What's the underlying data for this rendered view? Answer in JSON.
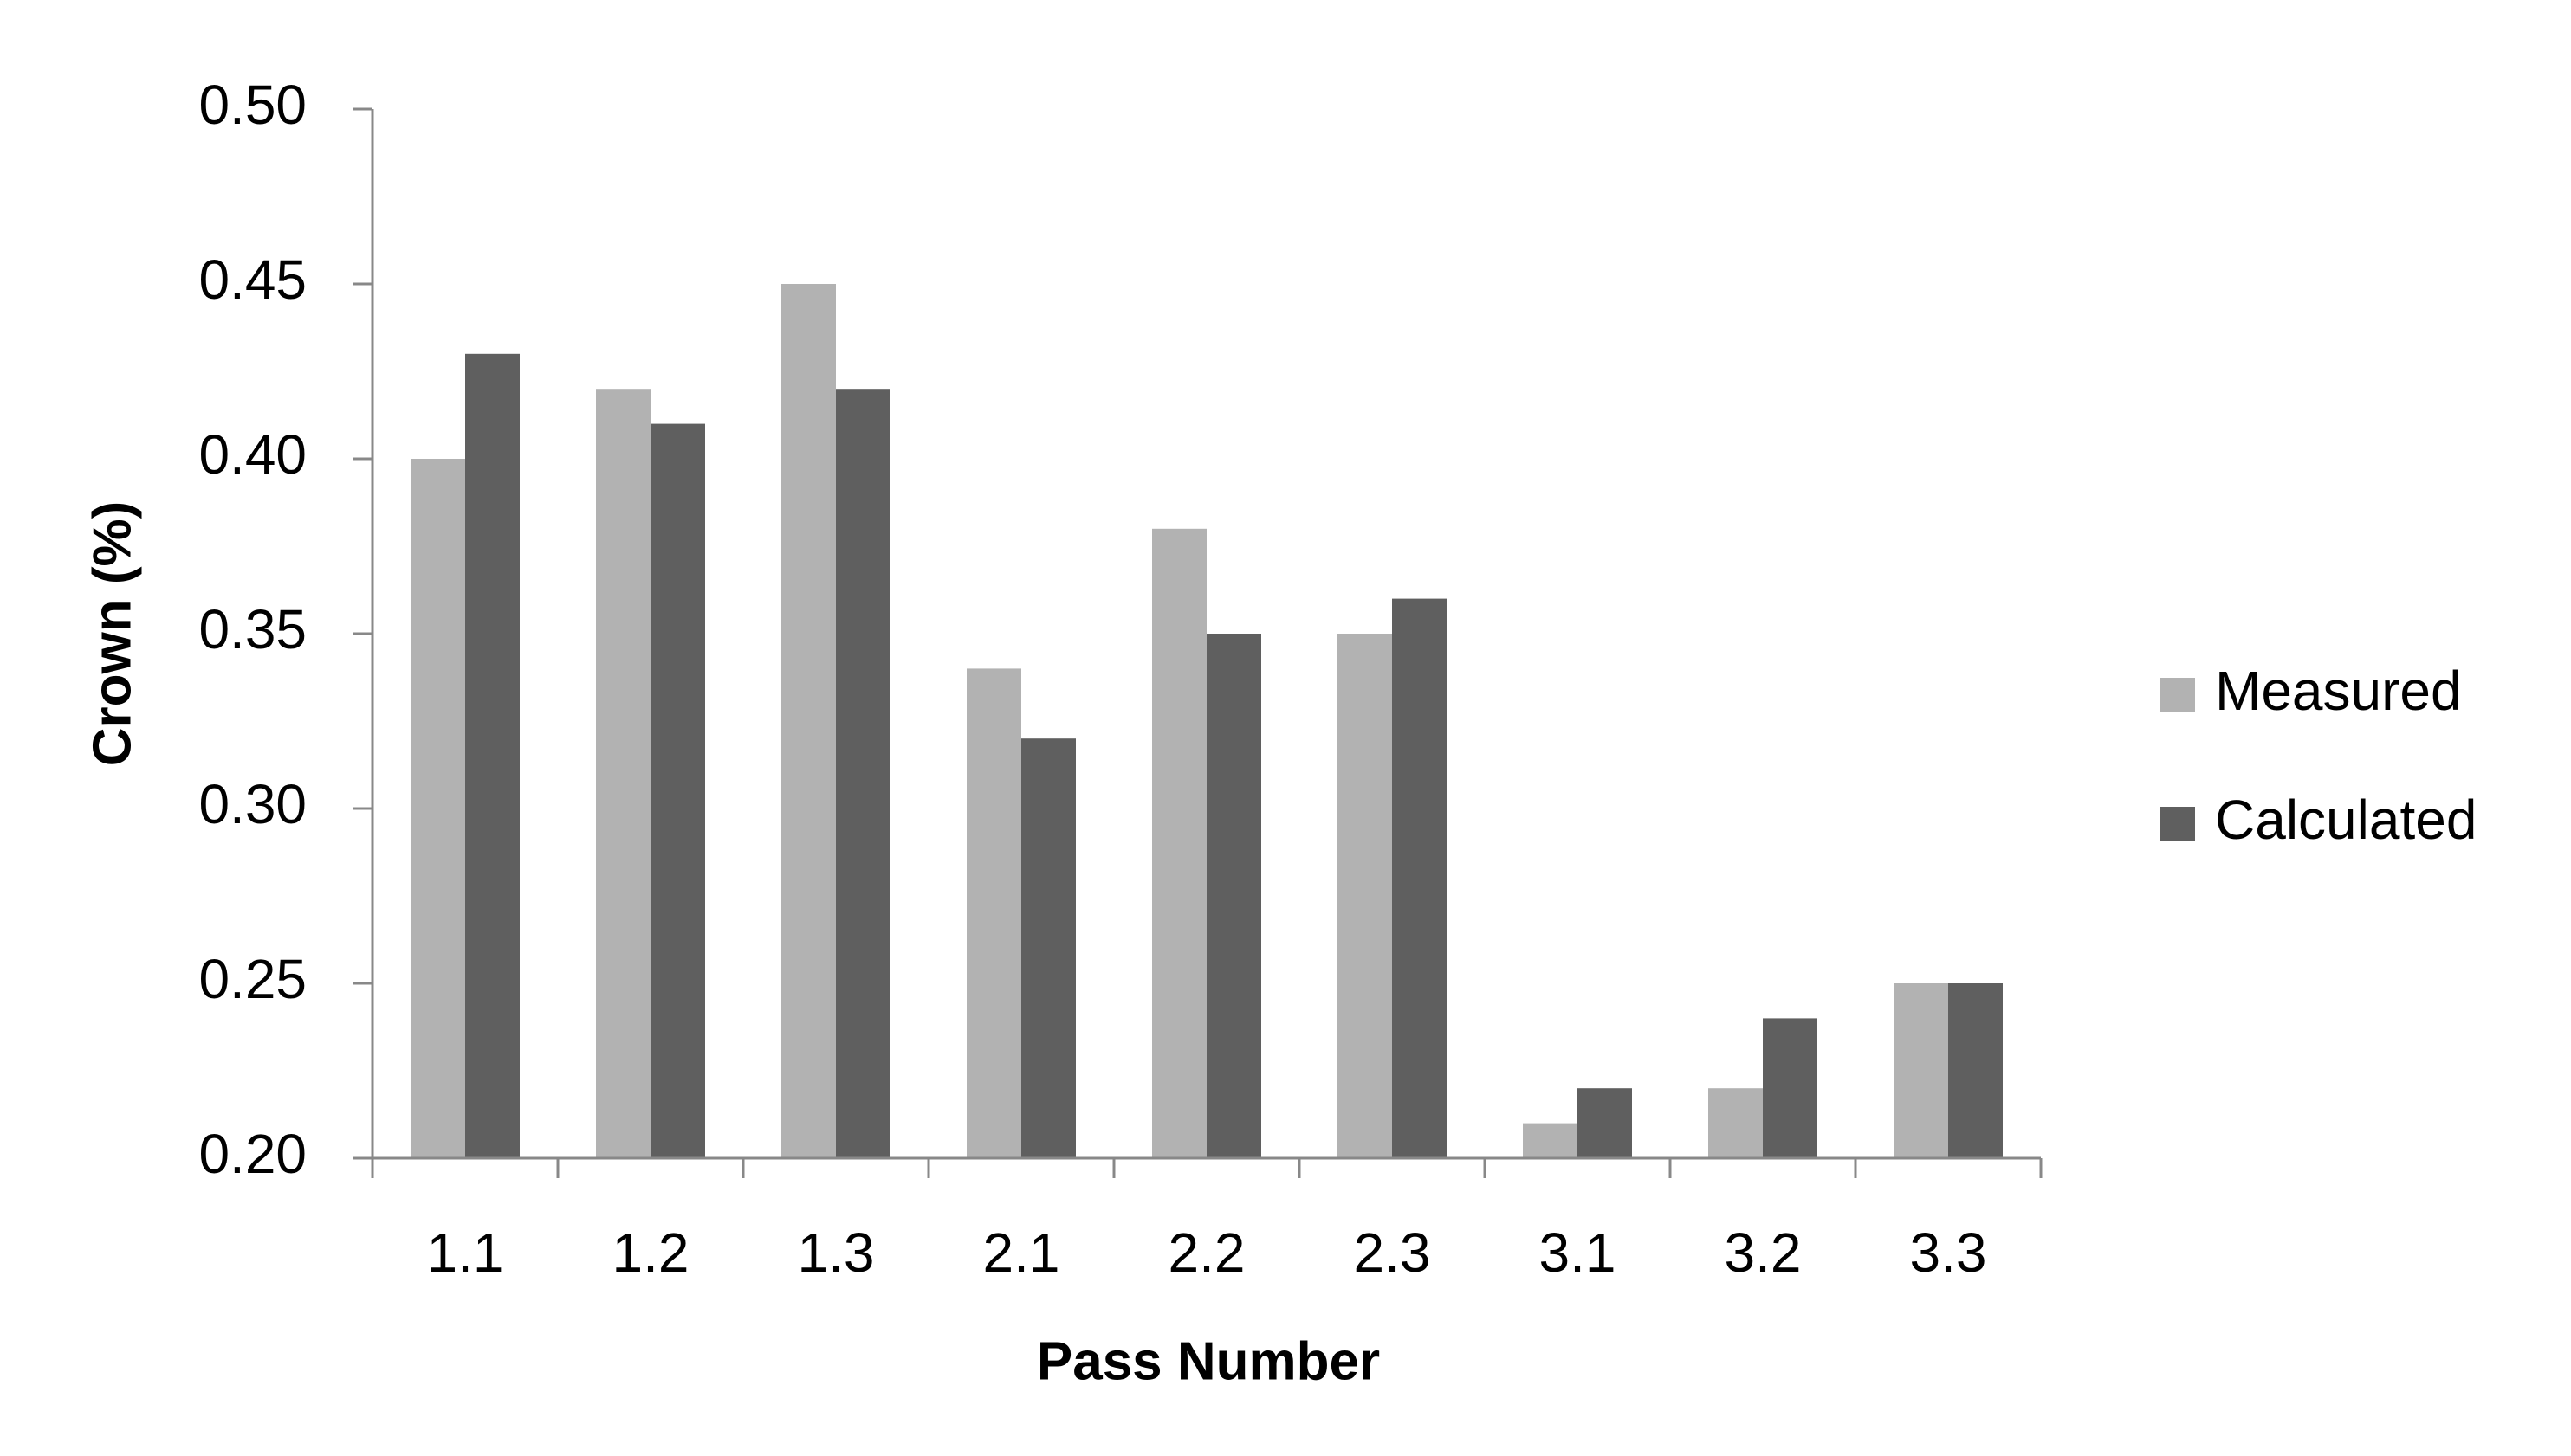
{
  "chart_data": {
    "type": "bar",
    "categories": [
      "1.1",
      "1.2",
      "1.3",
      "2.1",
      "2.2",
      "2.3",
      "3.1",
      "3.2",
      "3.3"
    ],
    "series": [
      {
        "name": "Measured",
        "color": "#b2b2b2",
        "values": [
          0.4,
          0.42,
          0.45,
          0.34,
          0.38,
          0.35,
          0.21,
          0.22,
          0.25
        ]
      },
      {
        "name": "Calculated",
        "color": "#5f5f5f",
        "values": [
          0.43,
          0.41,
          0.42,
          0.32,
          0.35,
          0.36,
          0.22,
          0.24,
          0.25
        ]
      }
    ],
    "x_label": "Pass Number",
    "y_label": "Crown (%)",
    "ylim": [
      0.2,
      0.5
    ],
    "yticks": [
      {
        "value": 0.2,
        "label": "0.20"
      },
      0.25,
      {
        "value": 0.3,
        "label": "0.30"
      },
      0.35,
      {
        "value": 0.4,
        "label": "0.40"
      },
      0.45,
      {
        "value": 0.5,
        "label": "0.50"
      }
    ],
    "grid": false,
    "legend": "right"
  }
}
